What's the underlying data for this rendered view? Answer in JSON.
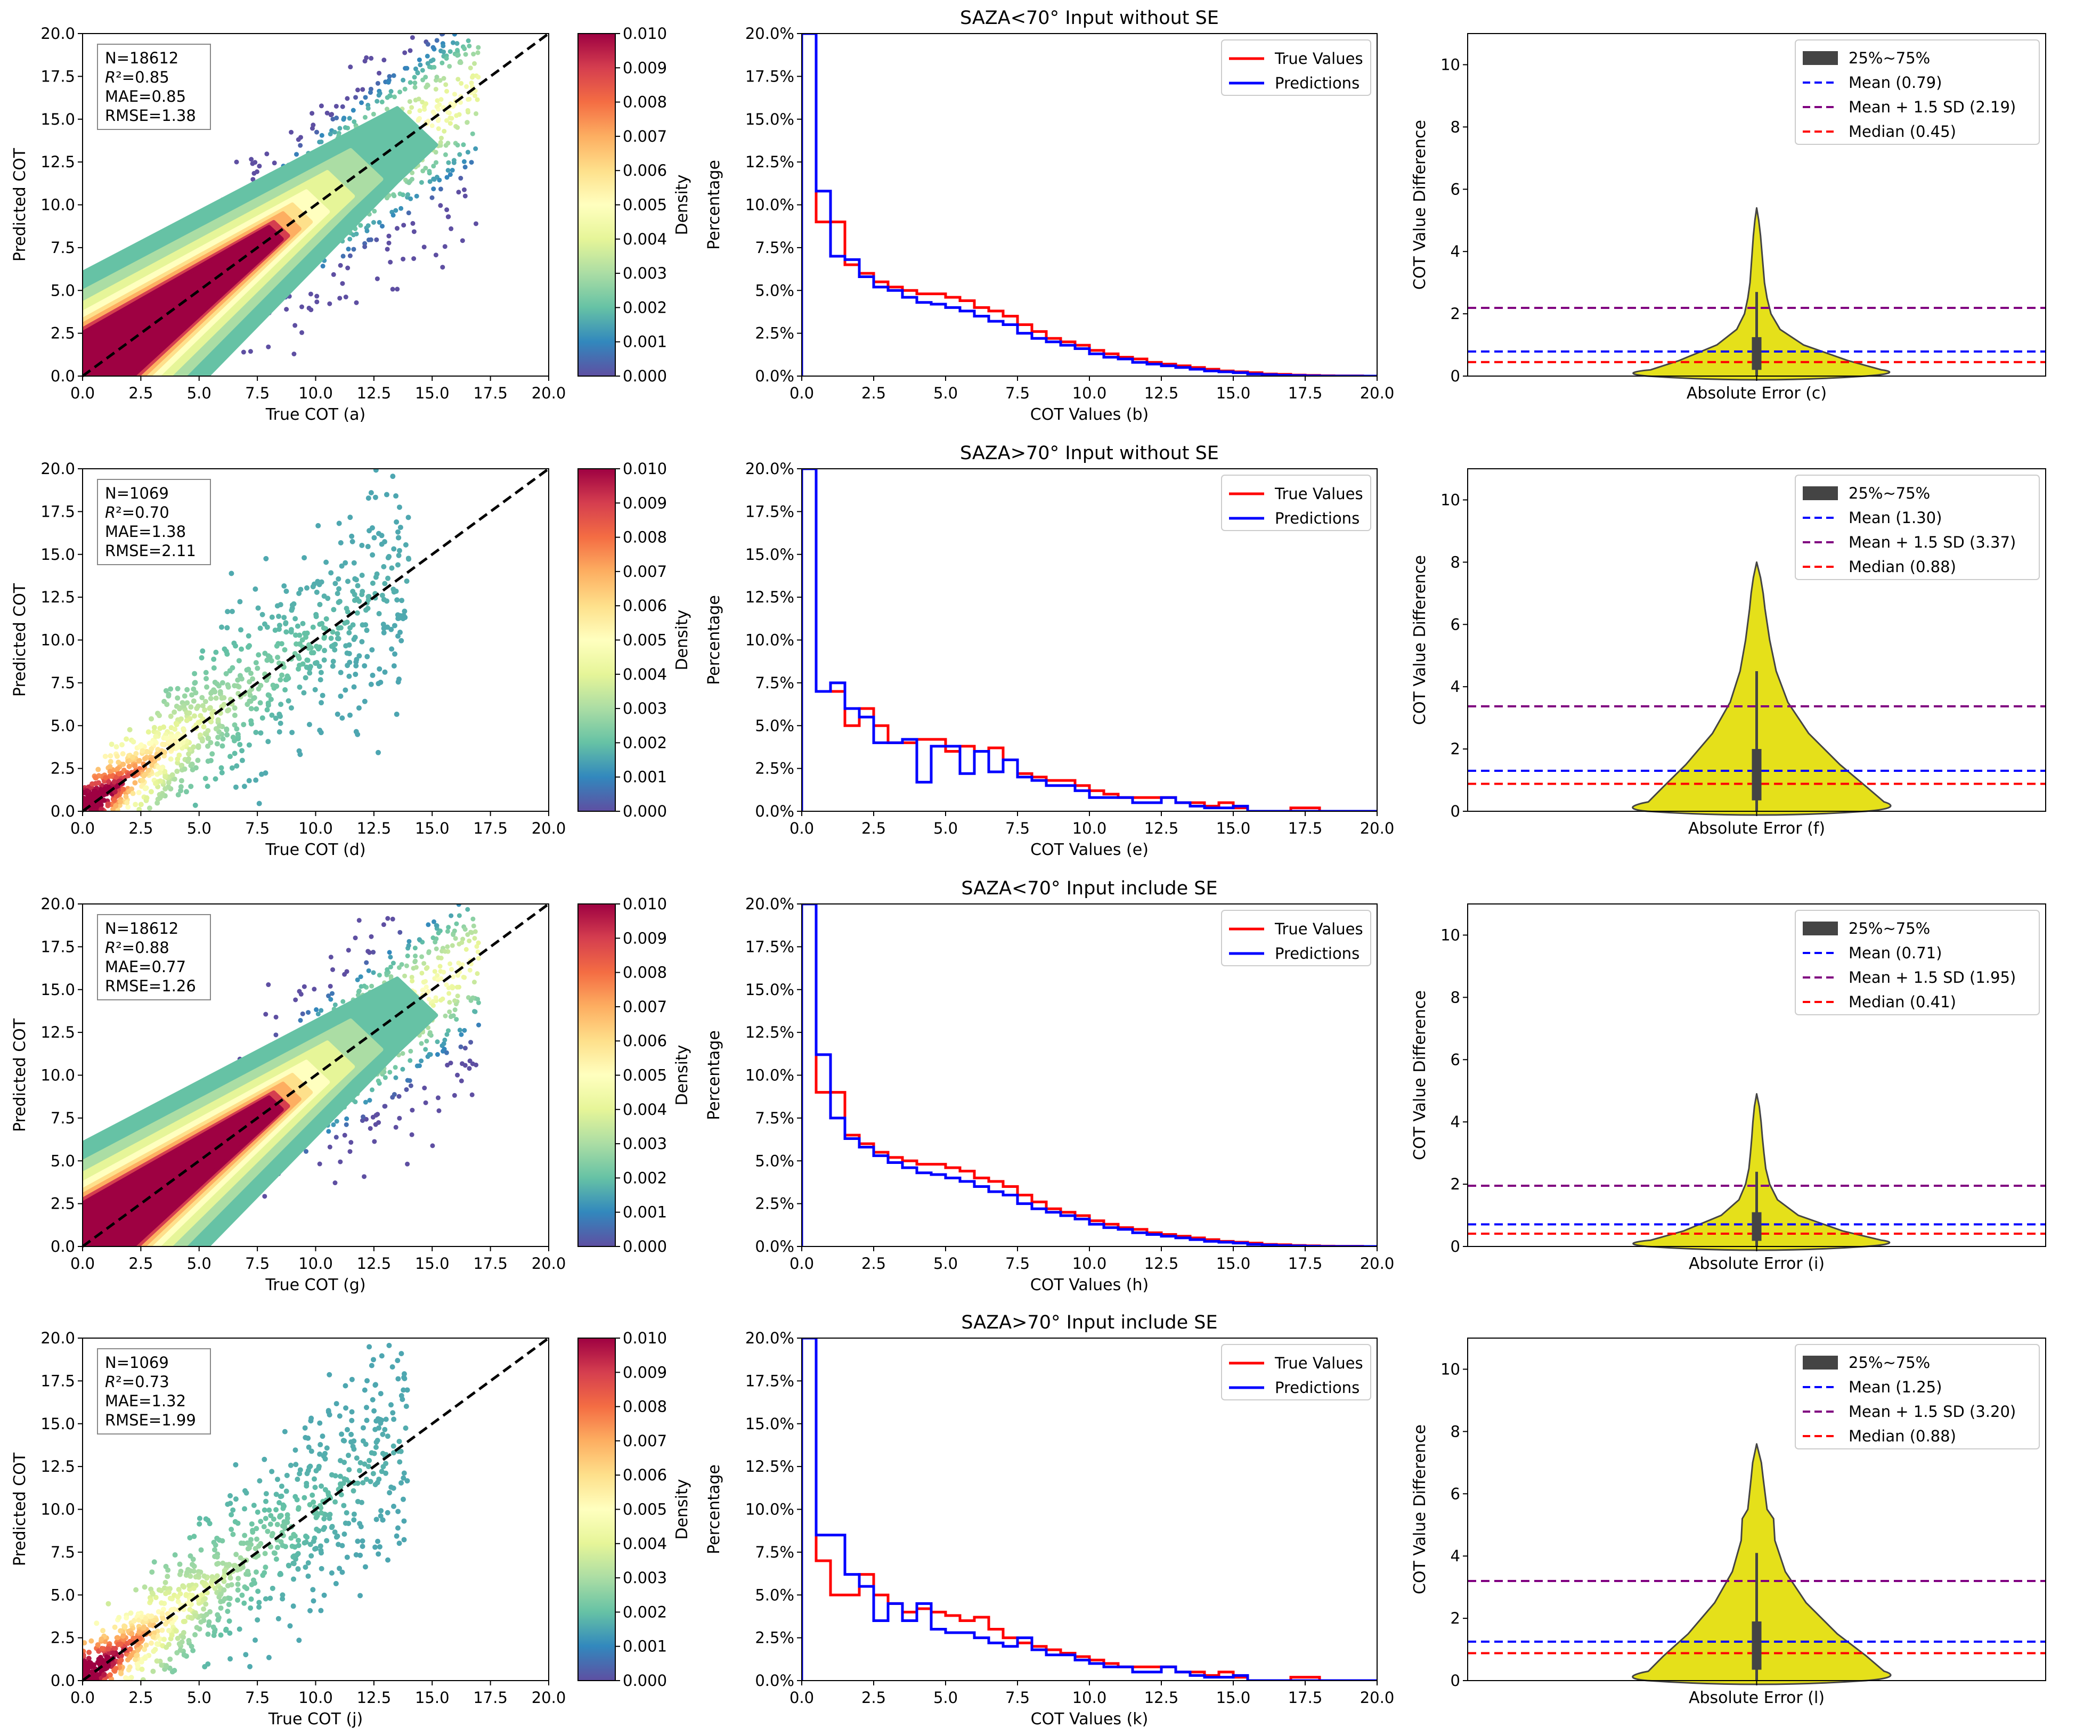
{
  "figure": {
    "row_titles": [
      "SAZA<70° Input without SE",
      "SAZA>70° Input without SE",
      "SAZA<70° Input include SE",
      "SAZA>70° Input include SE"
    ]
  },
  "chart_data": [
    {
      "panel": "scatter",
      "type": "scatter",
      "xlabel": "True COT (a)",
      "ylabel": "Predicted COT",
      "xlim": [
        0,
        20
      ],
      "ylim": [
        0,
        20
      ],
      "ticks": [
        "0.0",
        "2.5",
        "5.0",
        "7.5",
        "10.0",
        "12.5",
        "15.0",
        "17.5",
        "20.0"
      ],
      "stats": [
        "N=18612",
        "R",
        "²=0.85",
        "MAE=0.85",
        "RMSE=1.38"
      ],
      "colorbar": {
        "label": "Density",
        "min": 0.0,
        "max": 0.01,
        "ticks": [
          "0.000",
          "0.001",
          "0.002",
          "0.003",
          "0.004",
          "0.005",
          "0.006",
          "0.007",
          "0.008",
          "0.009",
          "0.010"
        ]
      },
      "n_points": 18612,
      "r2": 0.85,
      "mae": 0.85,
      "rmse": 1.38,
      "style": "dense"
    },
    {
      "panel": "histogram",
      "type": "line",
      "title": "SAZA<70° Input without SE",
      "xlabel": "COT Values (b)",
      "ylabel": "Percentage",
      "xlim": [
        0,
        20
      ],
      "ylim": [
        0,
        20
      ],
      "xticks": [
        "0.0",
        "2.5",
        "5.0",
        "7.5",
        "10.0",
        "12.5",
        "15.0",
        "17.5",
        "20.0"
      ],
      "yticks": [
        "0.0%",
        "2.5%",
        "5.0%",
        "7.5%",
        "10.0%",
        "12.5%",
        "15.0%",
        "17.5%",
        "20.0%"
      ],
      "bin_width": 0.5,
      "legend": [
        "True Values",
        "Predictions"
      ],
      "series": [
        {
          "name": "True Values",
          "color": "#ff0000",
          "values": [
            32,
            9.0,
            9.0,
            6.5,
            6.0,
            5.5,
            5.2,
            5.0,
            4.8,
            4.8,
            4.6,
            4.4,
            4.0,
            3.8,
            3.5,
            3.0,
            2.6,
            2.2,
            2.0,
            1.8,
            1.5,
            1.3,
            1.1,
            1.0,
            0.8,
            0.7,
            0.6,
            0.5,
            0.4,
            0.3,
            0.25,
            0.2,
            0.12,
            0.1,
            0.06,
            0.04,
            0.02,
            0.01,
            0.01,
            0.0
          ]
        },
        {
          "name": "Predictions",
          "color": "#0000ff",
          "values": [
            35,
            10.8,
            7.0,
            6.8,
            5.8,
            5.2,
            5.0,
            4.6,
            4.3,
            4.2,
            4.0,
            3.8,
            3.5,
            3.2,
            3.0,
            2.5,
            2.2,
            2.0,
            1.8,
            1.6,
            1.3,
            1.1,
            1.0,
            0.8,
            0.7,
            0.6,
            0.5,
            0.4,
            0.3,
            0.25,
            0.2,
            0.12,
            0.08,
            0.05,
            0.03,
            0.01,
            0.0,
            0.0,
            0.0,
            0.0
          ]
        }
      ]
    },
    {
      "panel": "violin",
      "type": "violin",
      "xlabel": "Absolute Error (c)",
      "ylabel": "COT Value Difference",
      "ylim": [
        0,
        11
      ],
      "yticks": [
        "0",
        "2",
        "4",
        "6",
        "8",
        "10"
      ],
      "legend": [
        "25%~75%",
        "Mean (0.79)",
        "Mean + 1.5 SD (2.19)",
        "Median (0.45)"
      ],
      "mean": 0.79,
      "mean_plus_1_5sd": 2.19,
      "median": 0.45,
      "q1": 0.2,
      "q3": 1.25,
      "whisker": 2.7,
      "max": 5.4,
      "profile": [
        [
          0,
          0.5
        ],
        [
          0.2,
          0.48
        ],
        [
          0.5,
          0.35
        ],
        [
          1.0,
          0.18
        ],
        [
          1.5,
          0.09
        ],
        [
          2.0,
          0.055
        ],
        [
          2.5,
          0.04
        ],
        [
          3.0,
          0.03
        ],
        [
          3.5,
          0.025
        ],
        [
          4.0,
          0.02
        ],
        [
          4.5,
          0.015
        ],
        [
          5.0,
          0.008
        ],
        [
          5.4,
          0.0
        ]
      ]
    },
    {
      "panel": "scatter",
      "type": "scatter",
      "xlabel": "True COT (d)",
      "ylabel": "Predicted COT",
      "xlim": [
        0,
        20
      ],
      "ylim": [
        0,
        20
      ],
      "ticks": [
        "0.0",
        "2.5",
        "5.0",
        "7.5",
        "10.0",
        "12.5",
        "15.0",
        "17.5",
        "20.0"
      ],
      "stats": [
        "N=1069",
        "R",
        "²=0.70",
        "MAE=1.38",
        "RMSE=2.11"
      ],
      "colorbar": {
        "label": "Density",
        "min": 0.0,
        "max": 0.01,
        "ticks": [
          "0.000",
          "0.001",
          "0.002",
          "0.003",
          "0.004",
          "0.005",
          "0.006",
          "0.007",
          "0.008",
          "0.009",
          "0.010"
        ]
      },
      "n_points": 1069,
      "r2": 0.7,
      "mae": 1.38,
      "rmse": 2.11,
      "style": "sparse"
    },
    {
      "panel": "histogram",
      "type": "line",
      "title": "SAZA>70° Input without SE",
      "xlabel": "COT Values (e)",
      "ylabel": "Percentage",
      "xlim": [
        0,
        20
      ],
      "ylim": [
        0,
        20
      ],
      "xticks": [
        "0.0",
        "2.5",
        "5.0",
        "7.5",
        "10.0",
        "12.5",
        "15.0",
        "17.5",
        "20.0"
      ],
      "yticks": [
        "0.0%",
        "2.5%",
        "5.0%",
        "7.5%",
        "10.0%",
        "12.5%",
        "15.0%",
        "17.5%",
        "20.0%"
      ],
      "bin_width": 0.5,
      "legend": [
        "True Values",
        "Predictions"
      ],
      "series": [
        {
          "name": "True Values",
          "color": "#ff0000",
          "values": [
            33,
            7.0,
            7.0,
            5.0,
            6.0,
            5.0,
            4.0,
            4.0,
            4.2,
            4.2,
            3.5,
            3.8,
            3.5,
            3.7,
            3.0,
            2.2,
            2.0,
            1.8,
            1.8,
            1.5,
            1.2,
            1.0,
            0.8,
            0.8,
            0.8,
            0.8,
            0.5,
            0.5,
            0.3,
            0.5,
            0.2,
            0.0,
            0.0,
            0.0,
            0.2,
            0.2,
            0.0,
            0.0,
            0.0,
            0.0
          ]
        },
        {
          "name": "Predictions",
          "color": "#0000ff",
          "values": [
            35,
            7.0,
            7.5,
            6.0,
            5.5,
            4.0,
            4.0,
            4.2,
            1.7,
            3.8,
            3.8,
            2.2,
            3.5,
            2.3,
            3.0,
            2.0,
            1.8,
            1.5,
            1.5,
            1.2,
            0.8,
            0.8,
            0.8,
            0.5,
            0.5,
            0.8,
            0.5,
            0.3,
            0.2,
            0.2,
            0.3,
            0.0,
            0.0,
            0.0,
            0.0,
            0.0,
            0.0,
            0.0,
            0.0,
            0.0
          ]
        }
      ]
    },
    {
      "panel": "violin",
      "type": "violin",
      "xlabel": "Absolute Error (f)",
      "ylabel": "COT Value Difference",
      "ylim": [
        0,
        11
      ],
      "yticks": [
        "0",
        "2",
        "4",
        "6",
        "8",
        "10"
      ],
      "legend": [
        "25%~75%",
        "Mean (1.30)",
        "Mean + 1.5 SD (3.37)",
        "Median (0.88)"
      ],
      "mean": 1.3,
      "mean_plus_1_5sd": 3.37,
      "median": 0.88,
      "q1": 0.35,
      "q3": 2.0,
      "whisker": 4.5,
      "max": 8.0,
      "profile": [
        [
          0,
          0.5
        ],
        [
          0.3,
          0.49
        ],
        [
          0.8,
          0.42
        ],
        [
          1.5,
          0.32
        ],
        [
          2.5,
          0.2
        ],
        [
          3.5,
          0.12
        ],
        [
          4.5,
          0.075
        ],
        [
          5.5,
          0.05
        ],
        [
          6.5,
          0.032
        ],
        [
          7.0,
          0.025
        ],
        [
          7.5,
          0.015
        ],
        [
          8.0,
          0.0
        ]
      ]
    },
    {
      "panel": "scatter",
      "type": "scatter",
      "xlabel": "True COT (g)",
      "ylabel": "Predicted COT",
      "xlim": [
        0,
        20
      ],
      "ylim": [
        0,
        20
      ],
      "ticks": [
        "0.0",
        "2.5",
        "5.0",
        "7.5",
        "10.0",
        "12.5",
        "15.0",
        "17.5",
        "20.0"
      ],
      "stats": [
        "N=18612",
        "R",
        "²=0.88",
        "MAE=0.77",
        "RMSE=1.26"
      ],
      "colorbar": {
        "label": "Density",
        "min": 0.0,
        "max": 0.01,
        "ticks": [
          "0.000",
          "0.001",
          "0.002",
          "0.003",
          "0.004",
          "0.005",
          "0.006",
          "0.007",
          "0.008",
          "0.009",
          "0.010"
        ]
      },
      "n_points": 18612,
      "r2": 0.88,
      "mae": 0.77,
      "rmse": 1.26,
      "style": "dense"
    },
    {
      "panel": "histogram",
      "type": "line",
      "title": "SAZA<70° Input include SE",
      "xlabel": "COT Values (h)",
      "ylabel": "Percentage",
      "xlim": [
        0,
        20
      ],
      "ylim": [
        0,
        20
      ],
      "xticks": [
        "0.0",
        "2.5",
        "5.0",
        "7.5",
        "10.0",
        "12.5",
        "15.0",
        "17.5",
        "20.0"
      ],
      "yticks": [
        "0.0%",
        "2.5%",
        "5.0%",
        "7.5%",
        "10.0%",
        "12.5%",
        "15.0%",
        "17.5%",
        "20.0%"
      ],
      "bin_width": 0.5,
      "legend": [
        "True Values",
        "Predictions"
      ],
      "series": [
        {
          "name": "True Values",
          "color": "#ff0000",
          "values": [
            32,
            9.0,
            9.0,
            6.5,
            6.0,
            5.5,
            5.2,
            5.0,
            4.8,
            4.8,
            4.6,
            4.4,
            4.0,
            3.8,
            3.5,
            3.0,
            2.6,
            2.2,
            2.0,
            1.8,
            1.5,
            1.3,
            1.1,
            1.0,
            0.8,
            0.7,
            0.6,
            0.5,
            0.4,
            0.3,
            0.25,
            0.2,
            0.12,
            0.1,
            0.06,
            0.04,
            0.02,
            0.01,
            0.01,
            0.0
          ]
        },
        {
          "name": "Predictions",
          "color": "#0000ff",
          "values": [
            35,
            11.2,
            7.5,
            6.3,
            5.8,
            5.3,
            4.9,
            4.6,
            4.3,
            4.2,
            4.0,
            3.8,
            3.5,
            3.2,
            3.0,
            2.5,
            2.2,
            2.0,
            1.8,
            1.6,
            1.3,
            1.1,
            1.0,
            0.8,
            0.7,
            0.6,
            0.5,
            0.4,
            0.3,
            0.25,
            0.2,
            0.12,
            0.08,
            0.05,
            0.03,
            0.01,
            0.0,
            0.0,
            0.0,
            0.0
          ]
        }
      ]
    },
    {
      "panel": "violin",
      "type": "violin",
      "xlabel": "Absolute Error (i)",
      "ylabel": "COT Value Difference",
      "ylim": [
        0,
        11
      ],
      "yticks": [
        "0",
        "2",
        "4",
        "6",
        "8",
        "10"
      ],
      "legend": [
        "25%~75%",
        "Mean (0.71)",
        "Mean + 1.5 SD (1.95)",
        "Median (0.41)"
      ],
      "mean": 0.71,
      "mean_plus_1_5sd": 1.95,
      "median": 0.41,
      "q1": 0.18,
      "q3": 1.1,
      "whisker": 2.4,
      "max": 4.9,
      "profile": [
        [
          0,
          0.5
        ],
        [
          0.2,
          0.48
        ],
        [
          0.5,
          0.33
        ],
        [
          1.0,
          0.16
        ],
        [
          1.5,
          0.08
        ],
        [
          2.0,
          0.05
        ],
        [
          2.5,
          0.035
        ],
        [
          3.0,
          0.028
        ],
        [
          3.5,
          0.022
        ],
        [
          4.0,
          0.017
        ],
        [
          4.5,
          0.01
        ],
        [
          4.9,
          0.0
        ]
      ]
    },
    {
      "panel": "scatter",
      "type": "scatter",
      "xlabel": "True COT (j)",
      "ylabel": "Predicted COT",
      "xlim": [
        0,
        20
      ],
      "ylim": [
        0,
        20
      ],
      "ticks": [
        "0.0",
        "2.5",
        "5.0",
        "7.5",
        "10.0",
        "12.5",
        "15.0",
        "17.5",
        "20.0"
      ],
      "stats": [
        "N=1069",
        "R",
        "²=0.73",
        "MAE=1.32",
        "RMSE=1.99"
      ],
      "colorbar": {
        "label": "Density",
        "min": 0.0,
        "max": 0.01,
        "ticks": [
          "0.000",
          "0.001",
          "0.002",
          "0.003",
          "0.004",
          "0.005",
          "0.006",
          "0.007",
          "0.008",
          "0.009",
          "0.010"
        ]
      },
      "n_points": 1069,
      "r2": 0.73,
      "mae": 1.32,
      "rmse": 1.99,
      "style": "sparse"
    },
    {
      "panel": "histogram",
      "type": "line",
      "title": "SAZA>70° Input include SE",
      "xlabel": "COT Values (k)",
      "ylabel": "Percentage",
      "xlim": [
        0,
        20
      ],
      "ylim": [
        0,
        20
      ],
      "xticks": [
        "0.0",
        "2.5",
        "5.0",
        "7.5",
        "10.0",
        "12.5",
        "15.0",
        "17.5",
        "20.0"
      ],
      "yticks": [
        "0.0%",
        "2.5%",
        "5.0%",
        "7.5%",
        "10.0%",
        "12.5%",
        "15.0%",
        "17.5%",
        "20.0%"
      ],
      "bin_width": 0.5,
      "legend": [
        "True Values",
        "Predictions"
      ],
      "series": [
        {
          "name": "True Values",
          "color": "#ff0000",
          "values": [
            33,
            7.0,
            5.0,
            5.0,
            6.2,
            5.0,
            4.5,
            4.0,
            4.2,
            4.0,
            3.8,
            3.5,
            3.7,
            3.0,
            2.5,
            2.2,
            2.0,
            1.8,
            1.6,
            1.4,
            1.2,
            1.0,
            0.8,
            0.8,
            0.8,
            0.8,
            0.5,
            0.5,
            0.3,
            0.5,
            0.2,
            0.0,
            0.0,
            0.0,
            0.2,
            0.2,
            0.0,
            0.0,
            0.0,
            0.0
          ]
        },
        {
          "name": "Predictions",
          "color": "#0000ff",
          "values": [
            35,
            8.5,
            8.5,
            6.2,
            5.5,
            3.5,
            4.5,
            3.5,
            4.5,
            3.0,
            2.8,
            2.8,
            2.5,
            2.2,
            2.0,
            2.5,
            1.8,
            1.5,
            1.5,
            1.2,
            1.0,
            0.8,
            0.8,
            0.5,
            0.5,
            0.8,
            0.5,
            0.3,
            0.2,
            0.2,
            0.3,
            0.0,
            0.0,
            0.0,
            0.0,
            0.0,
            0.0,
            0.0,
            0.0,
            0.0
          ]
        }
      ]
    },
    {
      "panel": "violin",
      "type": "violin",
      "xlabel": "Absolute Error (l)",
      "ylabel": "COT Value Difference",
      "ylim": [
        0,
        11
      ],
      "yticks": [
        "0",
        "2",
        "4",
        "6",
        "8",
        "10"
      ],
      "legend": [
        "25%~75%",
        "Mean (1.25)",
        "Mean + 1.5 SD (3.20)",
        "Median (0.88)"
      ],
      "mean": 1.25,
      "mean_plus_1_5sd": 3.2,
      "median": 0.88,
      "q1": 0.35,
      "q3": 1.9,
      "whisker": 4.1,
      "max": 7.6,
      "profile": [
        [
          0,
          0.5
        ],
        [
          0.3,
          0.49
        ],
        [
          0.8,
          0.42
        ],
        [
          1.5,
          0.31
        ],
        [
          2.5,
          0.19
        ],
        [
          3.5,
          0.11
        ],
        [
          4.5,
          0.07
        ],
        [
          5.2,
          0.065
        ],
        [
          5.5,
          0.04
        ],
        [
          6.5,
          0.025
        ],
        [
          7.0,
          0.018
        ],
        [
          7.6,
          0.0
        ]
      ]
    }
  ]
}
